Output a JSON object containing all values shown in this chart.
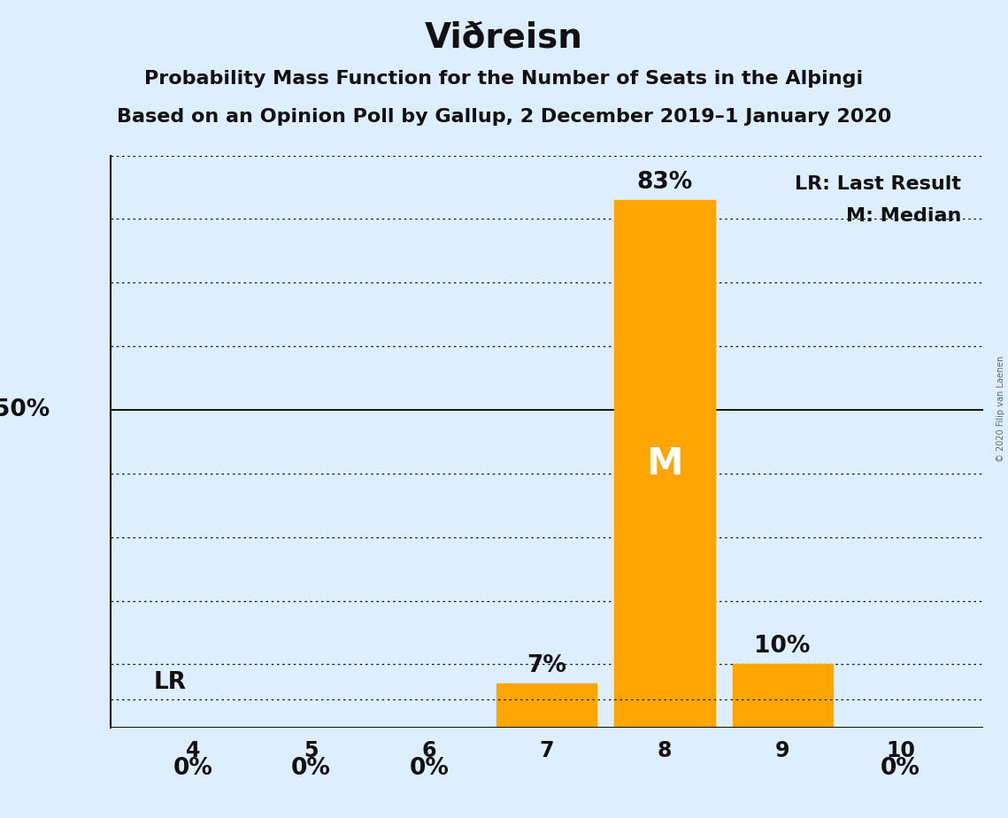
{
  "title": "Viðreisn",
  "subtitle1": "Probability Mass Function for the Number of Seats in the Alþingi",
  "subtitle2": "Based on an Opinion Poll by Gallup, 2 December 2019–1 January 2020",
  "watermark": "© 2020 Filip van Laenen",
  "seats": [
    4,
    5,
    6,
    7,
    8,
    9,
    10
  ],
  "probabilities": [
    0,
    0,
    0,
    7,
    83,
    10,
    0
  ],
  "bar_color": "#FFA500",
  "background_color": "#DDEEFF",
  "last_result_seat": 4,
  "last_result_value": 4.5,
  "median_seat": 8,
  "ylim": [
    0,
    90
  ],
  "yticks_dotted": [
    10,
    20,
    30,
    40,
    60,
    70,
    80,
    90
  ],
  "ytick_solid": 50,
  "y50_label": "50%",
  "legend_lr": "LR: Last Result",
  "legend_m": "M: Median",
  "title_fontsize": 28,
  "subtitle_fontsize": 16,
  "tick_fontsize": 17,
  "label_fontsize": 16,
  "bar_label_fontsize": 19
}
